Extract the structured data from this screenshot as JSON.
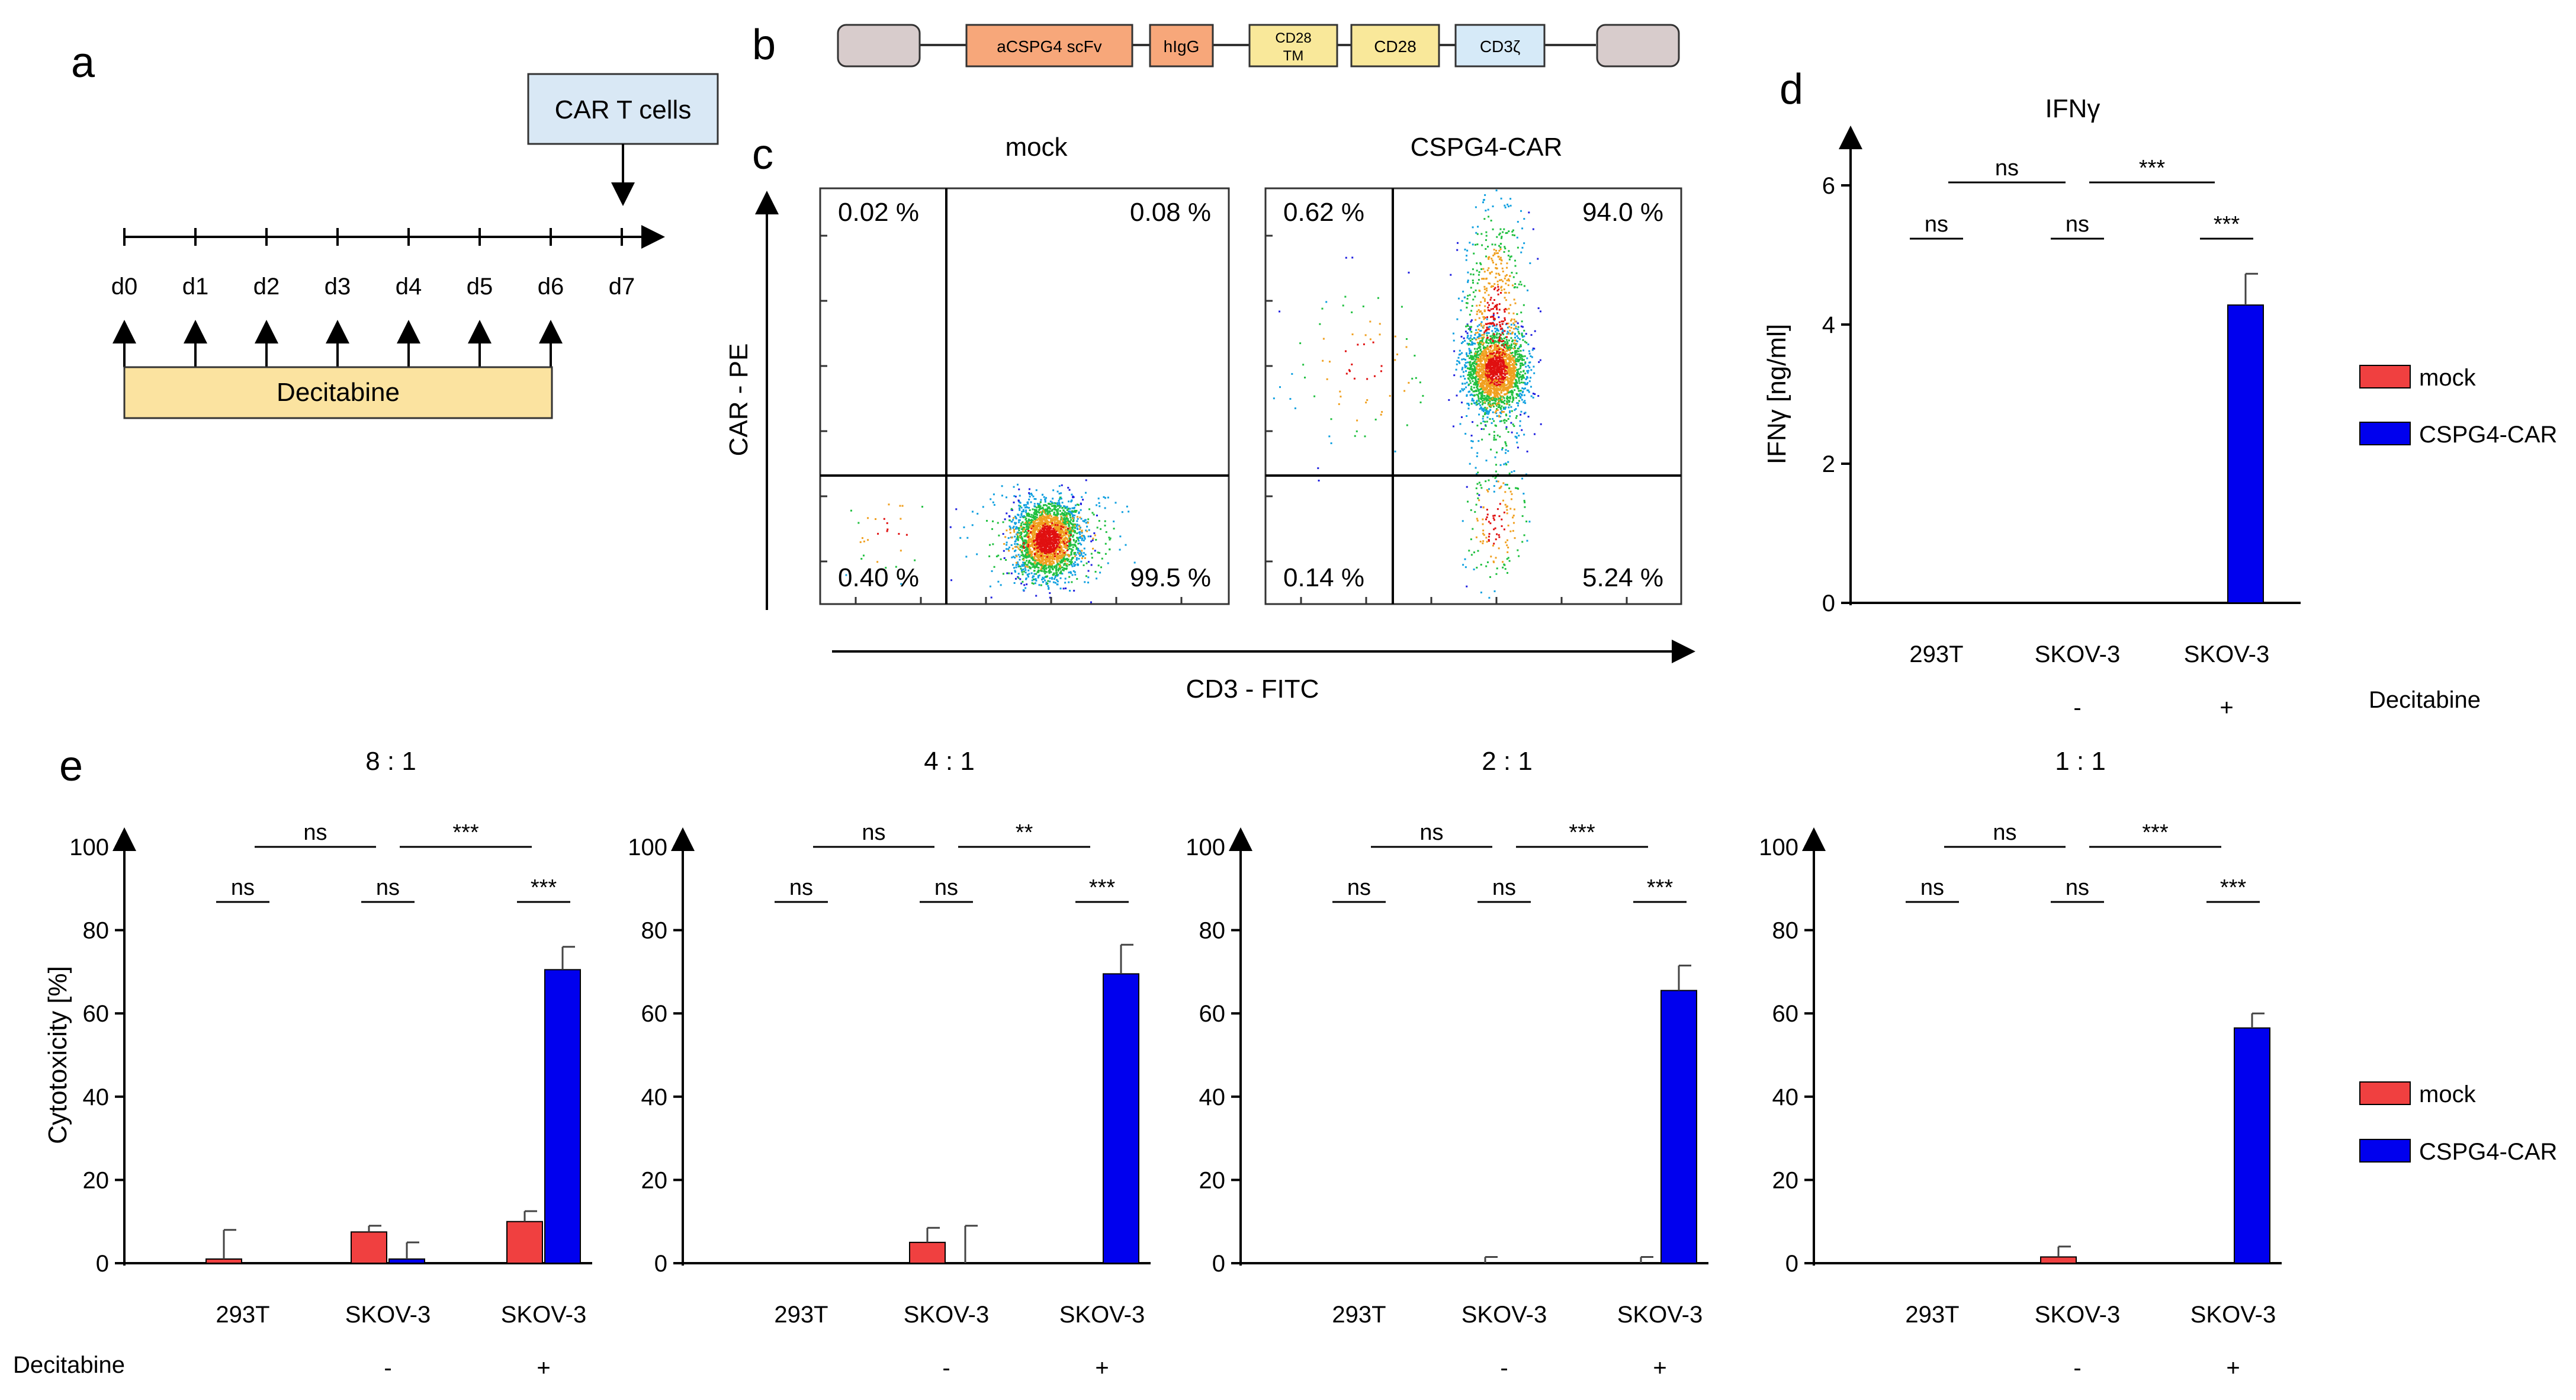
{
  "panels": {
    "a": {
      "label": "a",
      "cart_box": "CAR T cells",
      "days": [
        "d0",
        "d1",
        "d2",
        "d3",
        "d4",
        "d5",
        "d6",
        "d7"
      ],
      "treatment": "Decitabine"
    },
    "b": {
      "label": "b",
      "segments": [
        "aCSPG4 scFv",
        "hIgG",
        "CD28\nTM",
        "CD28",
        "CD3ζ"
      ],
      "segment_colors": [
        "#f7a77a",
        "#f7a77a",
        "#f9e89a",
        "#f9e89a",
        "#d6eaf8"
      ],
      "end_color": "#d8cccc"
    },
    "c": {
      "label": "c",
      "titles": [
        "mock",
        "CSPG4-CAR"
      ],
      "xlabel": "CD3 - FITC",
      "ylabel": "CAR - PE",
      "quadrants": [
        {
          "ul": "0.02 %",
          "ur": "0.08 %",
          "ll": "0.40 %",
          "lr": "99.5 %"
        },
        {
          "ul": "0.62 %",
          "ur": "94.0 %",
          "ll": "0.14 %",
          "lr": "5.24 %"
        }
      ]
    },
    "d": {
      "label": "d"
    },
    "e": {
      "label": "e"
    }
  },
  "chart_data": [
    {
      "type": "bar",
      "panel": "d",
      "title": "IFNγ",
      "ylabel": "IFNγ [ng/ml]",
      "ylim": [
        0,
        6
      ],
      "yticks": [
        0,
        2,
        4,
        6
      ],
      "categories": [
        "293T",
        "SKOV-3",
        "SKOV-3"
      ],
      "decitabine_label": "Decitabine",
      "decitabine": [
        "",
        "-",
        "+"
      ],
      "series": [
        {
          "name": "mock",
          "color": "#f04040",
          "values": [
            0,
            0,
            0
          ],
          "errors": [
            0,
            0,
            0
          ]
        },
        {
          "name": "CSPG4-CAR",
          "color": "#0000ee",
          "values": [
            0,
            0,
            4.28
          ],
          "errors": [
            0,
            0,
            0.45
          ]
        }
      ],
      "significance": {
        "within": [
          "ns",
          "ns",
          "***"
        ],
        "across": [
          "ns",
          "***"
        ]
      },
      "legend": "right"
    },
    {
      "type": "bar",
      "panel": "e",
      "title": "8 : 1",
      "ylabel": "Cytotoxicity [%]",
      "ylim": [
        0,
        100
      ],
      "yticks": [
        0,
        20,
        40,
        60,
        80,
        100
      ],
      "categories": [
        "293T",
        "SKOV-3",
        "SKOV-3"
      ],
      "decitabine_label": "Decitabine",
      "decitabine": [
        "",
        "-",
        "+"
      ],
      "series": [
        {
          "name": "mock",
          "color": "#f04040",
          "values": [
            1,
            7.5,
            10
          ],
          "errors": [
            7,
            1.5,
            2.5
          ]
        },
        {
          "name": "CSPG4-CAR",
          "color": "#0000ee",
          "values": [
            0,
            1,
            70.5
          ],
          "errors": [
            0,
            4,
            5.5
          ]
        }
      ],
      "significance": {
        "within": [
          "ns",
          "ns",
          "***"
        ],
        "across": [
          "ns",
          "***"
        ]
      }
    },
    {
      "type": "bar",
      "panel": "e",
      "title": "4 : 1",
      "ylim": [
        0,
        100
      ],
      "yticks": [
        0,
        20,
        40,
        60,
        80,
        100
      ],
      "categories": [
        "293T",
        "SKOV-3",
        "SKOV-3"
      ],
      "decitabine": [
        "",
        "-",
        "+"
      ],
      "series": [
        {
          "name": "mock",
          "color": "#f04040",
          "values": [
            0,
            5,
            0
          ],
          "errors": [
            0,
            3.5,
            0
          ]
        },
        {
          "name": "CSPG4-CAR",
          "color": "#0000ee",
          "values": [
            0,
            0,
            69.5
          ],
          "errors": [
            0,
            9,
            7
          ]
        }
      ],
      "significance": {
        "within": [
          "ns",
          "ns",
          "***"
        ],
        "across": [
          "ns",
          "**"
        ]
      }
    },
    {
      "type": "bar",
      "panel": "e",
      "title": "2 : 1",
      "ylim": [
        0,
        100
      ],
      "yticks": [
        0,
        20,
        40,
        60,
        80,
        100
      ],
      "categories": [
        "293T",
        "SKOV-3",
        "SKOV-3"
      ],
      "decitabine": [
        "",
        "-",
        "+"
      ],
      "series": [
        {
          "name": "mock",
          "color": "#f04040",
          "values": [
            0,
            0,
            0
          ],
          "errors": [
            0,
            1.5,
            1.5
          ]
        },
        {
          "name": "CSPG4-CAR",
          "color": "#0000ee",
          "values": [
            0,
            0,
            65.5
          ],
          "errors": [
            0,
            0,
            6
          ]
        }
      ],
      "significance": {
        "within": [
          "ns",
          "ns",
          "***"
        ],
        "across": [
          "ns",
          "***"
        ]
      }
    },
    {
      "type": "bar",
      "panel": "e",
      "title": "1 : 1",
      "ylim": [
        0,
        100
      ],
      "yticks": [
        0,
        20,
        40,
        60,
        80,
        100
      ],
      "categories": [
        "293T",
        "SKOV-3",
        "SKOV-3"
      ],
      "decitabine": [
        "",
        "-",
        "+"
      ],
      "series": [
        {
          "name": "mock",
          "color": "#f04040",
          "values": [
            0,
            1.5,
            0
          ],
          "errors": [
            0,
            2.5,
            0
          ]
        },
        {
          "name": "CSPG4-CAR",
          "color": "#0000ee",
          "values": [
            0,
            0,
            56.5
          ],
          "errors": [
            0,
            0,
            3.5
          ]
        }
      ],
      "significance": {
        "within": [
          "ns",
          "ns",
          "***"
        ],
        "across": [
          "ns",
          "***"
        ]
      }
    }
  ],
  "legend_e": [
    {
      "name": "mock",
      "color": "#f04040"
    },
    {
      "name": "CSPG4-CAR",
      "color": "#0000ee"
    }
  ]
}
